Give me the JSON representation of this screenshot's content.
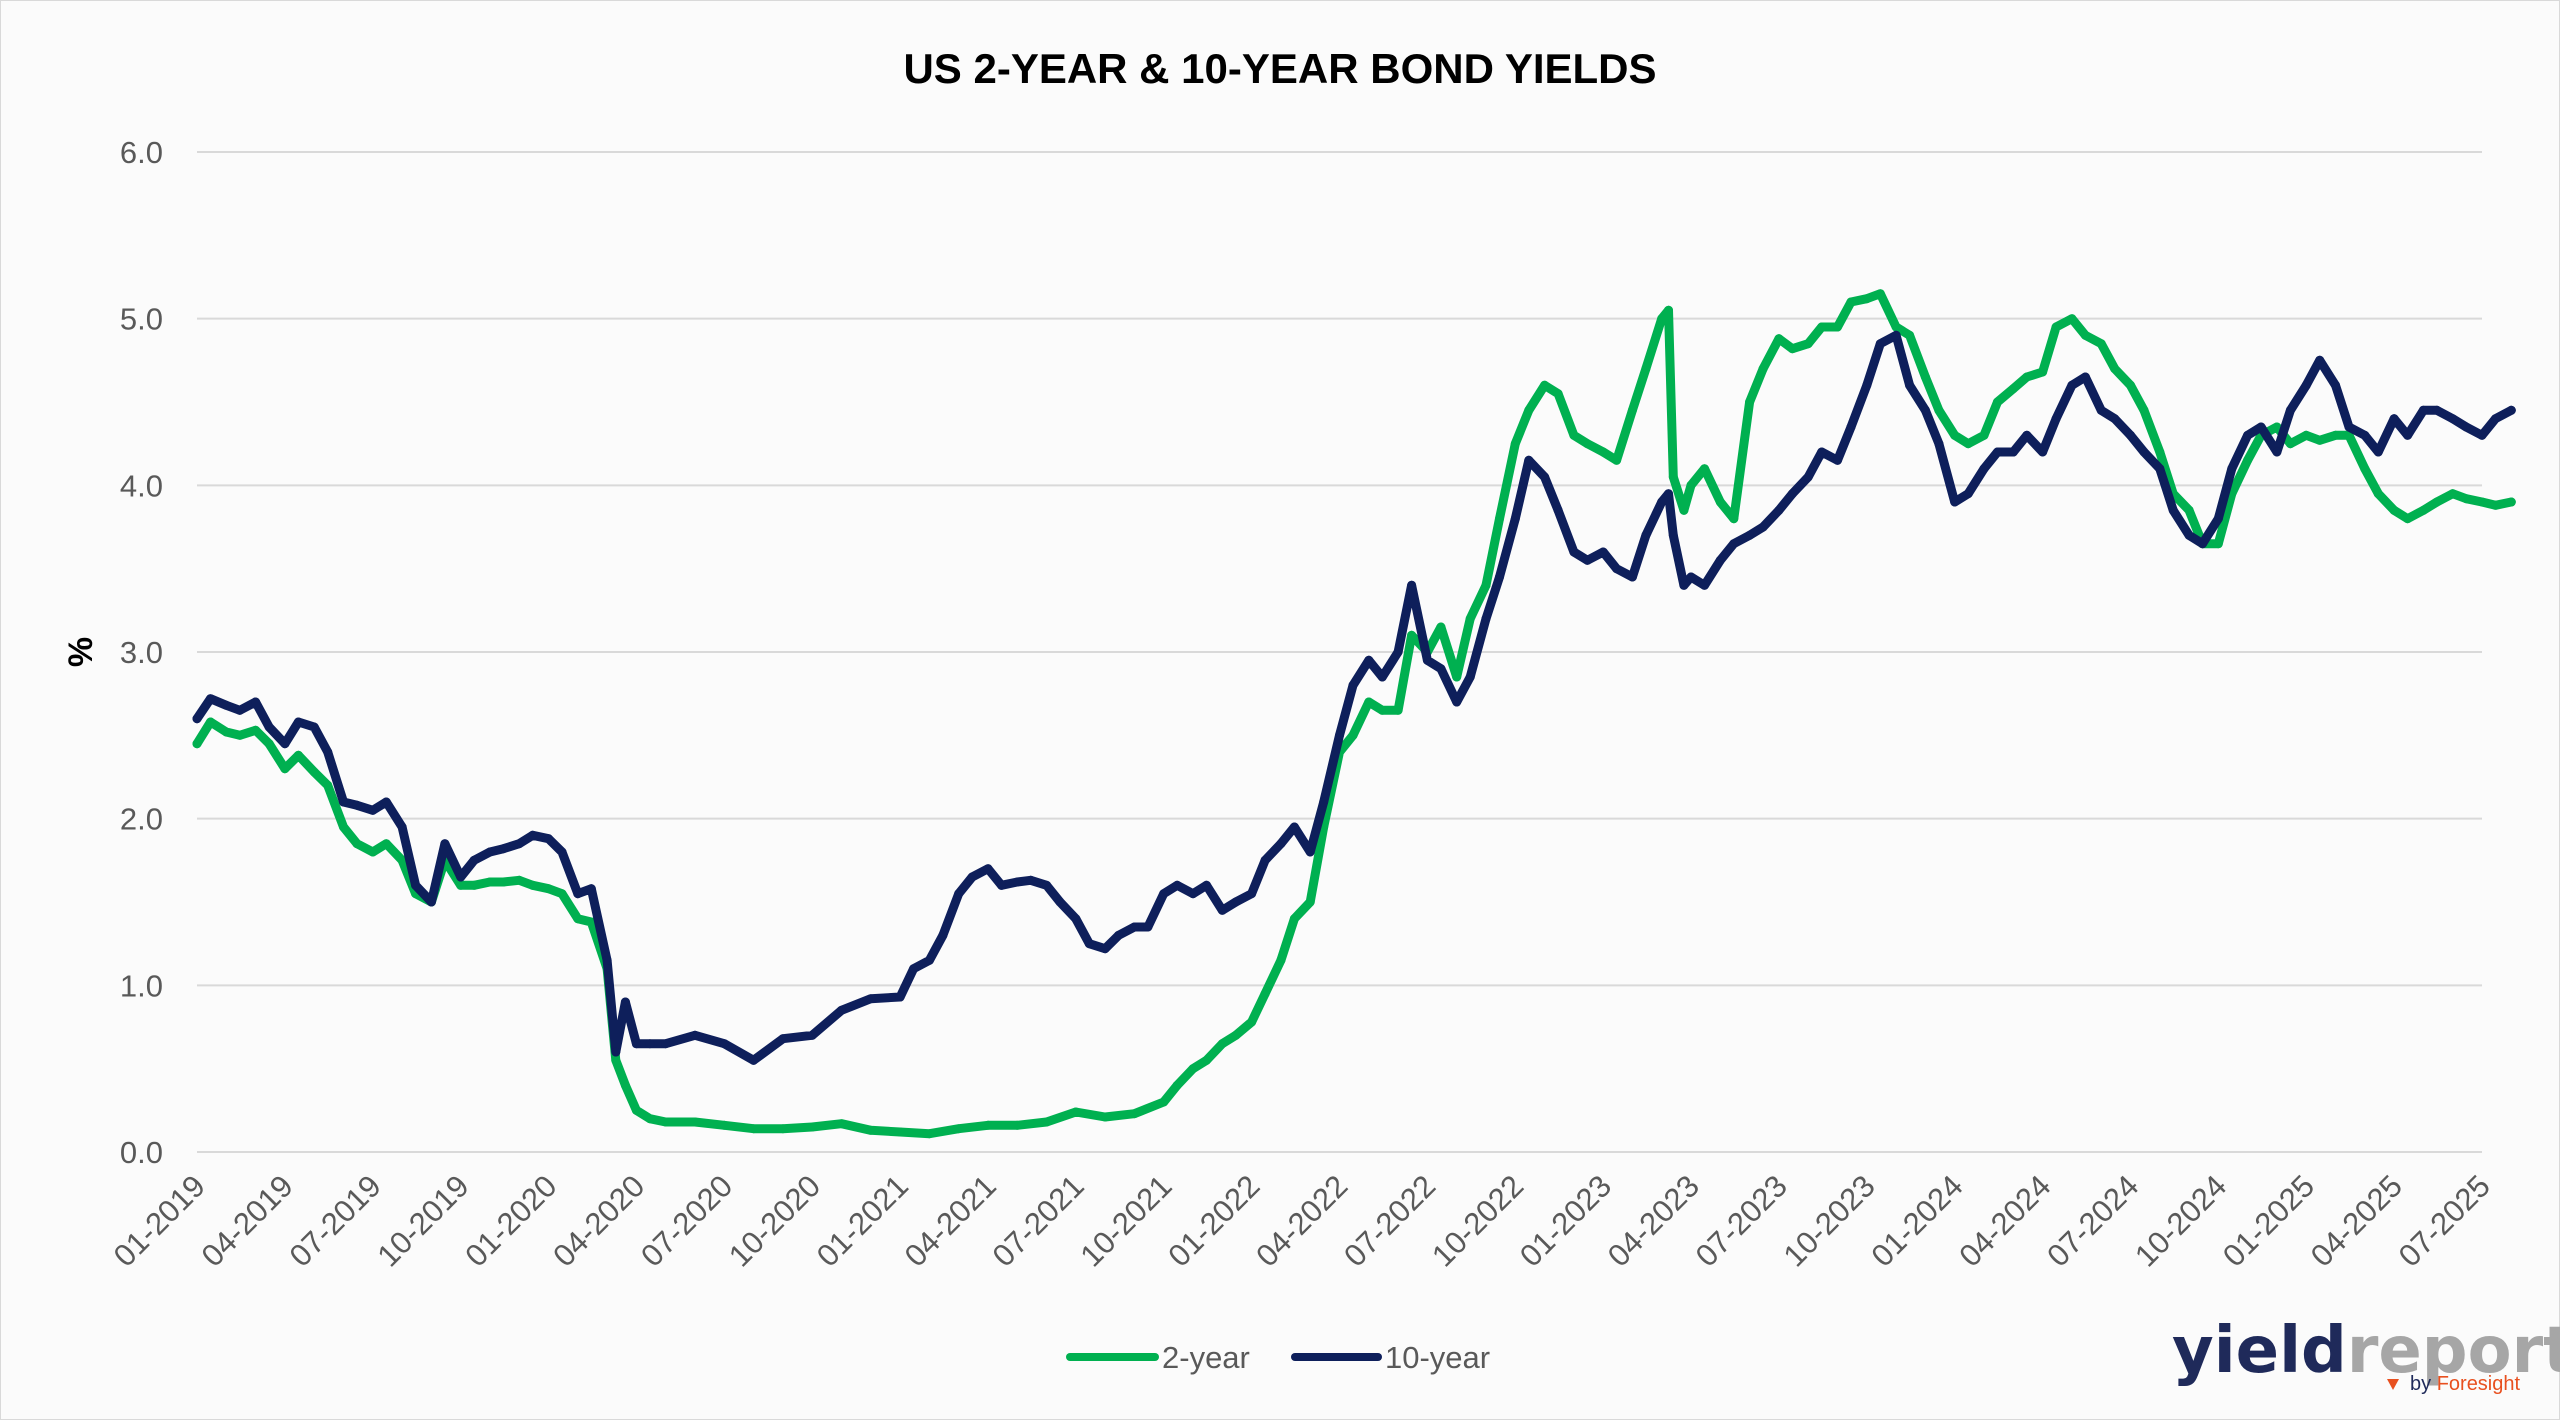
{
  "colors": {
    "two_year": "#00b050",
    "ten_year": "#0e1f5b",
    "grid": "#d9d9d9",
    "logo_dark": "#1f2a5a",
    "logo_light": "#a6a6a6",
    "logo_accent": "#e8501f"
  },
  "logo": {
    "word_dark": "yield",
    "word_light": "report",
    "by": "by",
    "brand": "Foresight",
    "icon": "triangle-arrow-icon"
  },
  "chart_data": {
    "type": "line",
    "title": "US 2-YEAR & 10-YEAR BOND YIELDS",
    "xlabel": "",
    "ylabel": "%",
    "ylim": [
      0,
      6
    ],
    "xlim": [
      "01-2019",
      "07-2025"
    ],
    "yticks": [
      "0.0",
      "1.0",
      "2.0",
      "3.0",
      "4.0",
      "5.0",
      "6.0"
    ],
    "xticks": [
      "01-2019",
      "04-2019",
      "07-2019",
      "10-2019",
      "01-2020",
      "04-2020",
      "07-2020",
      "10-2020",
      "01-2021",
      "04-2021",
      "07-2021",
      "10-2021",
      "01-2022",
      "04-2022",
      "07-2022",
      "10-2022",
      "01-2023",
      "04-2023",
      "07-2023",
      "10-2023",
      "01-2024",
      "04-2024",
      "07-2024",
      "10-2024",
      "01-2025",
      "04-2025",
      "07-2025"
    ],
    "grid": true,
    "legend_position": "bottom",
    "series": [
      {
        "name": "2-year",
        "x": [
          "2019-01-01",
          "2019-01-15",
          "2019-02-01",
          "2019-02-15",
          "2019-03-01",
          "2019-03-15",
          "2019-04-01",
          "2019-04-15",
          "2019-05-01",
          "2019-05-15",
          "2019-06-01",
          "2019-06-15",
          "2019-07-01",
          "2019-07-15",
          "2019-08-01",
          "2019-08-15",
          "2019-09-01",
          "2019-09-15",
          "2019-10-01",
          "2019-10-15",
          "2019-11-01",
          "2019-11-15",
          "2019-12-01",
          "2019-12-15",
          "2020-01-01",
          "2020-01-15",
          "2020-02-01",
          "2020-02-15",
          "2020-03-01",
          "2020-03-10",
          "2020-03-20",
          "2020-04-01",
          "2020-04-15",
          "2020-05-01",
          "2020-06-01",
          "2020-07-01",
          "2020-08-01",
          "2020-09-01",
          "2020-10-01",
          "2020-11-01",
          "2020-12-01",
          "2021-01-01",
          "2021-02-01",
          "2021-03-01",
          "2021-04-01",
          "2021-05-01",
          "2021-06-01",
          "2021-07-01",
          "2021-08-01",
          "2021-09-01",
          "2021-10-01",
          "2021-10-15",
          "2021-11-01",
          "2021-11-15",
          "2021-12-01",
          "2021-12-15",
          "2022-01-01",
          "2022-01-15",
          "2022-02-01",
          "2022-02-15",
          "2022-03-01",
          "2022-03-15",
          "2022-04-01",
          "2022-04-15",
          "2022-05-01",
          "2022-05-15",
          "2022-06-01",
          "2022-06-15",
          "2022-07-01",
          "2022-07-15",
          "2022-08-01",
          "2022-08-15",
          "2022-09-01",
          "2022-09-15",
          "2022-10-01",
          "2022-10-15",
          "2022-11-01",
          "2022-11-15",
          "2022-12-01",
          "2022-12-15",
          "2023-01-01",
          "2023-01-15",
          "2023-02-01",
          "2023-02-15",
          "2023-03-01",
          "2023-03-08",
          "2023-03-13",
          "2023-03-24",
          "2023-04-01",
          "2023-04-15",
          "2023-05-01",
          "2023-05-15",
          "2023-06-01",
          "2023-06-15",
          "2023-07-01",
          "2023-07-15",
          "2023-08-01",
          "2023-08-15",
          "2023-09-01",
          "2023-09-15",
          "2023-10-01",
          "2023-10-15",
          "2023-11-01",
          "2023-11-15",
          "2023-12-01",
          "2023-12-15",
          "2024-01-01",
          "2024-01-15",
          "2024-02-01",
          "2024-02-15",
          "2024-03-01",
          "2024-03-15",
          "2024-04-01",
          "2024-04-15",
          "2024-05-01",
          "2024-05-15",
          "2024-06-01",
          "2024-06-15",
          "2024-07-01",
          "2024-07-15",
          "2024-08-01",
          "2024-08-15",
          "2024-09-01",
          "2024-09-15",
          "2024-10-01",
          "2024-10-15",
          "2024-11-01",
          "2024-11-15",
          "2024-12-01",
          "2024-12-15",
          "2025-01-01",
          "2025-01-15",
          "2025-02-01",
          "2025-02-15",
          "2025-03-01",
          "2025-03-15",
          "2025-04-01",
          "2025-04-15",
          "2025-05-01",
          "2025-05-15",
          "2025-06-01",
          "2025-06-15",
          "2025-07-01",
          "2025-07-15",
          "2025-08-01"
        ],
        "values": [
          2.45,
          2.58,
          2.52,
          2.5,
          2.53,
          2.45,
          2.3,
          2.38,
          2.28,
          2.2,
          1.95,
          1.85,
          1.8,
          1.85,
          1.75,
          1.55,
          1.5,
          1.75,
          1.6,
          1.6,
          1.62,
          1.62,
          1.63,
          1.6,
          1.58,
          1.55,
          1.4,
          1.38,
          1.1,
          0.55,
          0.4,
          0.25,
          0.2,
          0.18,
          0.18,
          0.16,
          0.14,
          0.14,
          0.15,
          0.17,
          0.13,
          0.12,
          0.11,
          0.14,
          0.16,
          0.16,
          0.18,
          0.24,
          0.21,
          0.23,
          0.3,
          0.4,
          0.5,
          0.55,
          0.65,
          0.7,
          0.78,
          0.95,
          1.15,
          1.4,
          1.5,
          1.95,
          2.4,
          2.5,
          2.7,
          2.65,
          2.65,
          3.1,
          3.0,
          3.15,
          2.85,
          3.2,
          3.4,
          3.8,
          4.25,
          4.45,
          4.6,
          4.55,
          4.3,
          4.25,
          4.2,
          4.15,
          4.45,
          4.7,
          5.0,
          5.05,
          4.05,
          3.85,
          4.0,
          4.1,
          3.9,
          3.8,
          4.5,
          4.7,
          4.88,
          4.82,
          4.85,
          4.95,
          4.95,
          5.1,
          5.12,
          5.15,
          4.95,
          4.9,
          4.65,
          4.45,
          4.3,
          4.25,
          4.3,
          4.5,
          4.58,
          4.65,
          4.68,
          4.95,
          5.0,
          4.9,
          4.85,
          4.7,
          4.6,
          4.45,
          4.2,
          3.95,
          3.85,
          3.65,
          3.65,
          3.95,
          4.15,
          4.3,
          4.35,
          4.25,
          4.3,
          4.27,
          4.3,
          4.3,
          4.1,
          3.95,
          3.85,
          3.8,
          3.85,
          3.9,
          3.95,
          3.92,
          3.9,
          3.88,
          3.9
        ]
      },
      {
        "name": "10-year",
        "x": [
          "2019-01-01",
          "2019-01-15",
          "2019-02-01",
          "2019-02-15",
          "2019-03-01",
          "2019-03-15",
          "2019-04-01",
          "2019-04-15",
          "2019-05-01",
          "2019-05-15",
          "2019-06-01",
          "2019-06-15",
          "2019-07-01",
          "2019-07-15",
          "2019-08-01",
          "2019-08-15",
          "2019-09-01",
          "2019-09-15",
          "2019-10-01",
          "2019-10-15",
          "2019-11-01",
          "2019-11-15",
          "2019-12-01",
          "2019-12-15",
          "2020-01-01",
          "2020-01-15",
          "2020-02-01",
          "2020-02-15",
          "2020-03-01",
          "2020-03-10",
          "2020-03-20",
          "2020-04-01",
          "2020-04-15",
          "2020-05-01",
          "2020-06-01",
          "2020-07-01",
          "2020-08-01",
          "2020-09-01",
          "2020-10-01",
          "2020-11-01",
          "2020-12-01",
          "2021-01-01",
          "2021-01-15",
          "2021-02-01",
          "2021-02-15",
          "2021-03-01",
          "2021-03-15",
          "2021-04-01",
          "2021-04-15",
          "2021-05-01",
          "2021-05-15",
          "2021-06-01",
          "2021-06-15",
          "2021-07-01",
          "2021-07-15",
          "2021-08-01",
          "2021-08-15",
          "2021-09-01",
          "2021-09-15",
          "2021-10-01",
          "2021-10-15",
          "2021-11-01",
          "2021-11-15",
          "2021-12-01",
          "2021-12-15",
          "2022-01-01",
          "2022-01-15",
          "2022-02-01",
          "2022-02-15",
          "2022-03-01",
          "2022-03-15",
          "2022-04-01",
          "2022-04-15",
          "2022-05-01",
          "2022-05-15",
          "2022-06-01",
          "2022-06-15",
          "2022-07-01",
          "2022-07-15",
          "2022-08-01",
          "2022-08-15",
          "2022-09-01",
          "2022-09-15",
          "2022-10-01",
          "2022-10-15",
          "2022-11-01",
          "2022-11-15",
          "2022-12-01",
          "2022-12-15",
          "2023-01-01",
          "2023-01-15",
          "2023-02-01",
          "2023-02-15",
          "2023-03-01",
          "2023-03-08",
          "2023-03-13",
          "2023-03-24",
          "2023-04-01",
          "2023-04-15",
          "2023-05-01",
          "2023-05-15",
          "2023-06-01",
          "2023-06-15",
          "2023-07-01",
          "2023-07-15",
          "2023-08-01",
          "2023-08-15",
          "2023-09-01",
          "2023-09-15",
          "2023-10-01",
          "2023-10-15",
          "2023-11-01",
          "2023-11-15",
          "2023-12-01",
          "2023-12-15",
          "2024-01-01",
          "2024-01-15",
          "2024-02-01",
          "2024-02-15",
          "2024-03-01",
          "2024-03-15",
          "2024-04-01",
          "2024-04-15",
          "2024-05-01",
          "2024-05-15",
          "2024-06-01",
          "2024-06-15",
          "2024-07-01",
          "2024-07-15",
          "2024-08-01",
          "2024-08-15",
          "2024-09-01",
          "2024-09-15",
          "2024-10-01",
          "2024-10-15",
          "2024-11-01",
          "2024-11-15",
          "2024-12-01",
          "2024-12-15",
          "2025-01-01",
          "2025-01-15",
          "2025-02-01",
          "2025-02-15",
          "2025-03-01",
          "2025-03-15",
          "2025-04-01",
          "2025-04-15",
          "2025-05-01",
          "2025-05-15",
          "2025-06-01",
          "2025-06-15",
          "2025-07-01",
          "2025-07-15",
          "2025-08-01"
        ],
        "values": [
          2.6,
          2.72,
          2.68,
          2.65,
          2.7,
          2.55,
          2.45,
          2.58,
          2.55,
          2.4,
          2.1,
          2.08,
          2.05,
          2.1,
          1.95,
          1.6,
          1.5,
          1.85,
          1.65,
          1.75,
          1.8,
          1.82,
          1.85,
          1.9,
          1.88,
          1.8,
          1.55,
          1.58,
          1.15,
          0.6,
          0.9,
          0.65,
          0.65,
          0.65,
          0.7,
          0.65,
          0.55,
          0.68,
          0.7,
          0.85,
          0.92,
          0.93,
          1.1,
          1.15,
          1.3,
          1.55,
          1.65,
          1.7,
          1.6,
          1.62,
          1.63,
          1.6,
          1.5,
          1.4,
          1.25,
          1.22,
          1.3,
          1.35,
          1.35,
          1.55,
          1.6,
          1.55,
          1.6,
          1.45,
          1.5,
          1.55,
          1.75,
          1.85,
          1.95,
          1.8,
          2.1,
          2.5,
          2.8,
          2.95,
          2.85,
          3.0,
          3.4,
          2.95,
          2.9,
          2.7,
          2.85,
          3.2,
          3.45,
          3.8,
          4.15,
          4.05,
          3.85,
          3.6,
          3.55,
          3.6,
          3.5,
          3.45,
          3.7,
          3.9,
          3.95,
          3.7,
          3.4,
          3.45,
          3.4,
          3.55,
          3.65,
          3.7,
          3.75,
          3.85,
          3.95,
          4.05,
          4.2,
          4.15,
          4.35,
          4.6,
          4.85,
          4.9,
          4.6,
          4.45,
          4.25,
          3.9,
          3.95,
          4.1,
          4.2,
          4.2,
          4.3,
          4.2,
          4.4,
          4.6,
          4.65,
          4.45,
          4.4,
          4.3,
          4.2,
          4.1,
          3.85,
          3.7,
          3.65,
          3.8,
          4.1,
          4.3,
          4.35,
          4.2,
          4.45,
          4.6,
          4.75,
          4.6,
          4.35,
          4.3,
          4.2,
          4.4,
          4.3,
          4.45,
          4.45,
          4.4,
          4.35,
          4.3,
          4.4,
          4.45
        ]
      }
    ]
  }
}
